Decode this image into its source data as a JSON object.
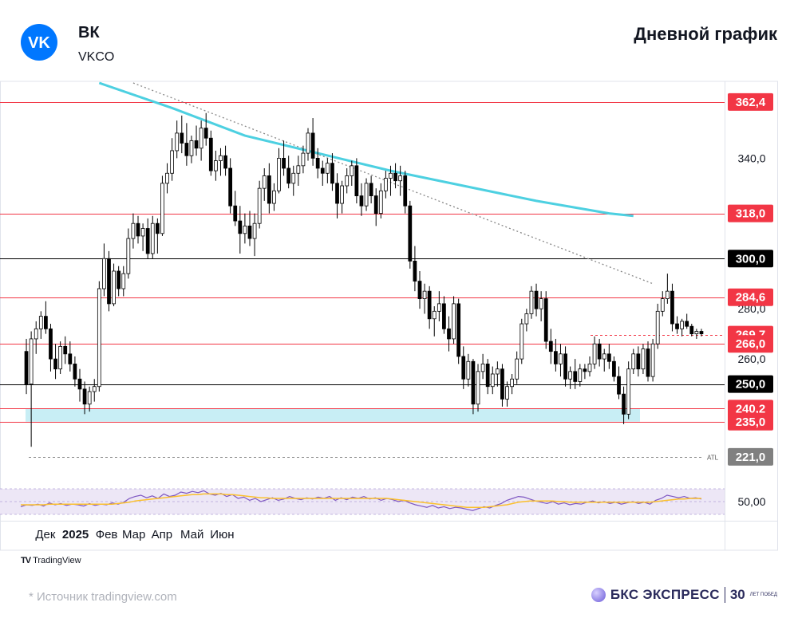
{
  "header": {
    "ticker_name": "ВК",
    "ticker_code": "VKCO",
    "chart_title": "Дневной график"
  },
  "footer": {
    "tradingview": "TradingView",
    "source_text": "*  Источник tradingview.com",
    "brand": "БКС ЭКСПРЕСС",
    "brand_years": "30",
    "brand_years_small": "ЛЕТ ПОБЕД"
  },
  "colors": {
    "bull": "#ffffff",
    "bear": "#000000",
    "resistance": "#f23645",
    "level": "#000000",
    "ma": "#4dd0e1",
    "support_zone": "#c8eef5",
    "rsi_line": "#7e57c2",
    "rsi_ma": "#fbc02d",
    "rsi_band": "#ede7f6",
    "trend": "#888888"
  },
  "chart_data": {
    "type": "candlestick",
    "x_tick_labels": [
      "Дек",
      "2025",
      "Фев",
      "Мар",
      "Апр",
      "Май",
      "Июн"
    ],
    "x_ticks": [
      {
        "label": "Дек",
        "date": "2024-12-02"
      },
      {
        "label": "2025",
        "date": "2025-01-02"
      },
      {
        "label": "Фев",
        "date": "2025-02-03"
      },
      {
        "label": "Мар",
        "date": "2025-03-03"
      },
      {
        "label": "Апр",
        "date": "2025-04-01"
      },
      {
        "label": "Май",
        "date": "2025-05-02"
      },
      {
        "label": "Июн",
        "date": "2025-06-02"
      }
    ],
    "y_tick_labels": [
      "340,0",
      "280,0",
      "260,0"
    ],
    "ylim": [
      213,
      370
    ],
    "price_levels": [
      {
        "value": 362.4,
        "label": "362,4",
        "kind": "resistance"
      },
      {
        "value": 318.0,
        "label": "318,0",
        "kind": "resistance"
      },
      {
        "value": 300.0,
        "label": "300,0",
        "kind": "key"
      },
      {
        "value": 284.6,
        "label": "284,6",
        "kind": "resistance"
      },
      {
        "value": 269.7,
        "label": "269,7",
        "kind": "last"
      },
      {
        "value": 266.0,
        "label": "266,0",
        "kind": "resistance"
      },
      {
        "value": 250.0,
        "label": "250,0",
        "kind": "key"
      },
      {
        "value": 240.2,
        "label": "240,2",
        "kind": "resistance"
      },
      {
        "value": 235.0,
        "label": "235,0",
        "kind": "resistance"
      },
      {
        "value": 221.0,
        "label": "221,0",
        "kind": "atl",
        "tag": "ATL"
      }
    ],
    "support_zone": [
      235.0,
      240.2
    ],
    "moving_average": [
      [
        15,
        370
      ],
      [
        30,
        360
      ],
      [
        45,
        349
      ],
      [
        60,
        342
      ],
      [
        75,
        335
      ],
      [
        90,
        329
      ],
      [
        105,
        323
      ],
      [
        120,
        318
      ],
      [
        125,
        317
      ]
    ],
    "trendline": [
      [
        22,
        370
      ],
      [
        129,
        290
      ]
    ],
    "rsi": {
      "label": "50,00",
      "ylim": [
        20,
        80
      ],
      "line": [
        42,
        45,
        44,
        46,
        43,
        48,
        45,
        47,
        44,
        46,
        45,
        43,
        47,
        44,
        46,
        45,
        48,
        46,
        49,
        55,
        58,
        60,
        56,
        59,
        55,
        62,
        58,
        60,
        65,
        63,
        66,
        64,
        67,
        62,
        60,
        63,
        58,
        61,
        55,
        57,
        52,
        55,
        50,
        53,
        56,
        52,
        54,
        58,
        55,
        53,
        56,
        54,
        57,
        55,
        58,
        52,
        56,
        53,
        57,
        55,
        58,
        54,
        56,
        52,
        55,
        53,
        50,
        52,
        48,
        45,
        43,
        41,
        44,
        40,
        42,
        39,
        41,
        40,
        38,
        36,
        39,
        42,
        40,
        44,
        47,
        52,
        55,
        58,
        57,
        54,
        51,
        49,
        47,
        50,
        46,
        48,
        45,
        47,
        46,
        49,
        51,
        48,
        50,
        47,
        49,
        46,
        48,
        50,
        47,
        49,
        46,
        52,
        55,
        60,
        58,
        56,
        58,
        55,
        56,
        54
      ],
      "ma": [
        45,
        45,
        45,
        45,
        45,
        46,
        46,
        46,
        46,
        46,
        46,
        46,
        46,
        46,
        46,
        46,
        46,
        47,
        48,
        49,
        51,
        52,
        53,
        54,
        55,
        56,
        57,
        58,
        59,
        60,
        61,
        61,
        62,
        62,
        62,
        62,
        61,
        61,
        60,
        59,
        58,
        57,
        56,
        56,
        55,
        55,
        55,
        55,
        55,
        55,
        55,
        55,
        55,
        55,
        55,
        55,
        55,
        55,
        55,
        55,
        55,
        55,
        55,
        55,
        55,
        54,
        53,
        52,
        51,
        50,
        49,
        48,
        47,
        46,
        45,
        44,
        43,
        42,
        41,
        41,
        41,
        41,
        42,
        43,
        44,
        45,
        47,
        49,
        50,
        51,
        51,
        51,
        51,
        51,
        50,
        50,
        49,
        49,
        49,
        49,
        49,
        49,
        49,
        49,
        49,
        49,
        49,
        49,
        49,
        49,
        49,
        50,
        51,
        52,
        53,
        54,
        54,
        55,
        55,
        55
      ]
    },
    "candles": [
      [
        263,
        268,
        246,
        250
      ],
      [
        250,
        271,
        225,
        268
      ],
      [
        268,
        275,
        262,
        272
      ],
      [
        272,
        279,
        268,
        277
      ],
      [
        277,
        283,
        270,
        272
      ],
      [
        272,
        274,
        255,
        260
      ],
      [
        260,
        266,
        252,
        256
      ],
      [
        256,
        267,
        254,
        265
      ],
      [
        265,
        269,
        258,
        262
      ],
      [
        262,
        267,
        255,
        258
      ],
      [
        258,
        261,
        249,
        252
      ],
      [
        252,
        256,
        243,
        248
      ],
      [
        248,
        251,
        238,
        242
      ],
      [
        242,
        249,
        239,
        247
      ],
      [
        247,
        252,
        243,
        249
      ],
      [
        249,
        291,
        247,
        288
      ],
      [
        288,
        306,
        285,
        300
      ],
      [
        300,
        303,
        279,
        282
      ],
      [
        282,
        298,
        281,
        295
      ],
      [
        295,
        297,
        285,
        288
      ],
      [
        288,
        297,
        285,
        294
      ],
      [
        294,
        312,
        292,
        308
      ],
      [
        308,
        318,
        304,
        314
      ],
      [
        314,
        317,
        306,
        309
      ],
      [
        309,
        314,
        303,
        312
      ],
      [
        312,
        316,
        300,
        302
      ],
      [
        302,
        317,
        300,
        314
      ],
      [
        314,
        316,
        302,
        310
      ],
      [
        310,
        333,
        309,
        330
      ],
      [
        330,
        338,
        326,
        334
      ],
      [
        334,
        348,
        331,
        343
      ],
      [
        343,
        355,
        340,
        350
      ],
      [
        350,
        357,
        342,
        346
      ],
      [
        346,
        354,
        337,
        341
      ],
      [
        341,
        349,
        338,
        347
      ],
      [
        347,
        353,
        341,
        344
      ],
      [
        344,
        355,
        339,
        352
      ],
      [
        352,
        358,
        345,
        348
      ],
      [
        348,
        351,
        333,
        335
      ],
      [
        335,
        343,
        331,
        339
      ],
      [
        339,
        344,
        333,
        341
      ],
      [
        341,
        345,
        333,
        336
      ],
      [
        336,
        340,
        318,
        321
      ],
      [
        321,
        327,
        313,
        315
      ],
      [
        315,
        321,
        302,
        310
      ],
      [
        310,
        318,
        306,
        313
      ],
      [
        313,
        319,
        305,
        308
      ],
      [
        308,
        318,
        301,
        314
      ],
      [
        314,
        331,
        312,
        328
      ],
      [
        328,
        336,
        323,
        333
      ],
      [
        333,
        338,
        318,
        322
      ],
      [
        322,
        330,
        319,
        327
      ],
      [
        327,
        344,
        326,
        340
      ],
      [
        340,
        347,
        333,
        336
      ],
      [
        336,
        341,
        328,
        330
      ],
      [
        330,
        337,
        325,
        334
      ],
      [
        334,
        341,
        329,
        337
      ],
      [
        337,
        345,
        334,
        342
      ],
      [
        342,
        352,
        339,
        350
      ],
      [
        350,
        356,
        337,
        340
      ],
      [
        340,
        344,
        332,
        336
      ],
      [
        336,
        339,
        329,
        334
      ],
      [
        334,
        340,
        330,
        338
      ],
      [
        338,
        342,
        327,
        330
      ],
      [
        330,
        334,
        316,
        322
      ],
      [
        322,
        331,
        318,
        329
      ],
      [
        329,
        336,
        326,
        333
      ],
      [
        333,
        339,
        329,
        337
      ],
      [
        337,
        340,
        322,
        325
      ],
      [
        325,
        330,
        317,
        321
      ],
      [
        321,
        332,
        319,
        330
      ],
      [
        330,
        333,
        322,
        325
      ],
      [
        325,
        328,
        313,
        318
      ],
      [
        318,
        330,
        316,
        327
      ],
      [
        327,
        335,
        324,
        332
      ],
      [
        332,
        337,
        325,
        334
      ],
      [
        334,
        338,
        328,
        331
      ],
      [
        331,
        337,
        325,
        333
      ],
      [
        333,
        335,
        318,
        321
      ],
      [
        321,
        323,
        296,
        299
      ],
      [
        299,
        305,
        287,
        291
      ],
      [
        291,
        295,
        280,
        284
      ],
      [
        284,
        290,
        278,
        287
      ],
      [
        287,
        289,
        272,
        276
      ],
      [
        276,
        281,
        269,
        279
      ],
      [
        279,
        287,
        275,
        282
      ],
      [
        282,
        285,
        270,
        272
      ],
      [
        272,
        277,
        263,
        268
      ],
      [
        268,
        285,
        266,
        282
      ],
      [
        282,
        284,
        258,
        261
      ],
      [
        261,
        265,
        248,
        252
      ],
      [
        252,
        262,
        249,
        259
      ],
      [
        259,
        260,
        238,
        242
      ],
      [
        242,
        258,
        239,
        255
      ],
      [
        255,
        262,
        252,
        258
      ],
      [
        258,
        260,
        246,
        249
      ],
      [
        249,
        257,
        246,
        254
      ],
      [
        254,
        259,
        249,
        256
      ],
      [
        256,
        258,
        241,
        244
      ],
      [
        244,
        251,
        241,
        249
      ],
      [
        249,
        254,
        246,
        252
      ],
      [
        252,
        263,
        250,
        260
      ],
      [
        260,
        276,
        258,
        274
      ],
      [
        274,
        280,
        271,
        278
      ],
      [
        278,
        289,
        276,
        287
      ],
      [
        287,
        290,
        277,
        280
      ],
      [
        280,
        287,
        275,
        284
      ],
      [
        284,
        287,
        264,
        267
      ],
      [
        267,
        272,
        258,
        263
      ],
      [
        263,
        268,
        255,
        258
      ],
      [
        258,
        266,
        253,
        262
      ],
      [
        262,
        265,
        249,
        252
      ],
      [
        252,
        257,
        248,
        255
      ],
      [
        255,
        260,
        248,
        251
      ],
      [
        251,
        258,
        249,
        256
      ],
      [
        256,
        258,
        252,
        255
      ],
      [
        255,
        261,
        253,
        258
      ],
      [
        258,
        269,
        256,
        266
      ],
      [
        266,
        268,
        257,
        260
      ],
      [
        260,
        264,
        255,
        262
      ],
      [
        262,
        266,
        256,
        259
      ],
      [
        259,
        261,
        251,
        253
      ],
      [
        253,
        257,
        244,
        246
      ],
      [
        246,
        249,
        234,
        238
      ],
      [
        238,
        259,
        236,
        256
      ],
      [
        256,
        264,
        254,
        262
      ],
      [
        262,
        265,
        253,
        256
      ],
      [
        256,
        266,
        254,
        264
      ],
      [
        264,
        267,
        251,
        253
      ],
      [
        253,
        268,
        251,
        266
      ],
      [
        266,
        282,
        264,
        279
      ],
      [
        279,
        287,
        277,
        284
      ],
      [
        284,
        294,
        282,
        287
      ],
      [
        287,
        290,
        271,
        274
      ],
      [
        274,
        277,
        270,
        272
      ],
      [
        272,
        276,
        269,
        275
      ],
      [
        275,
        278,
        272,
        273
      ],
      [
        273,
        274,
        269,
        270
      ],
      [
        270,
        272,
        268,
        271
      ],
      [
        271,
        272,
        269,
        270
      ]
    ]
  }
}
